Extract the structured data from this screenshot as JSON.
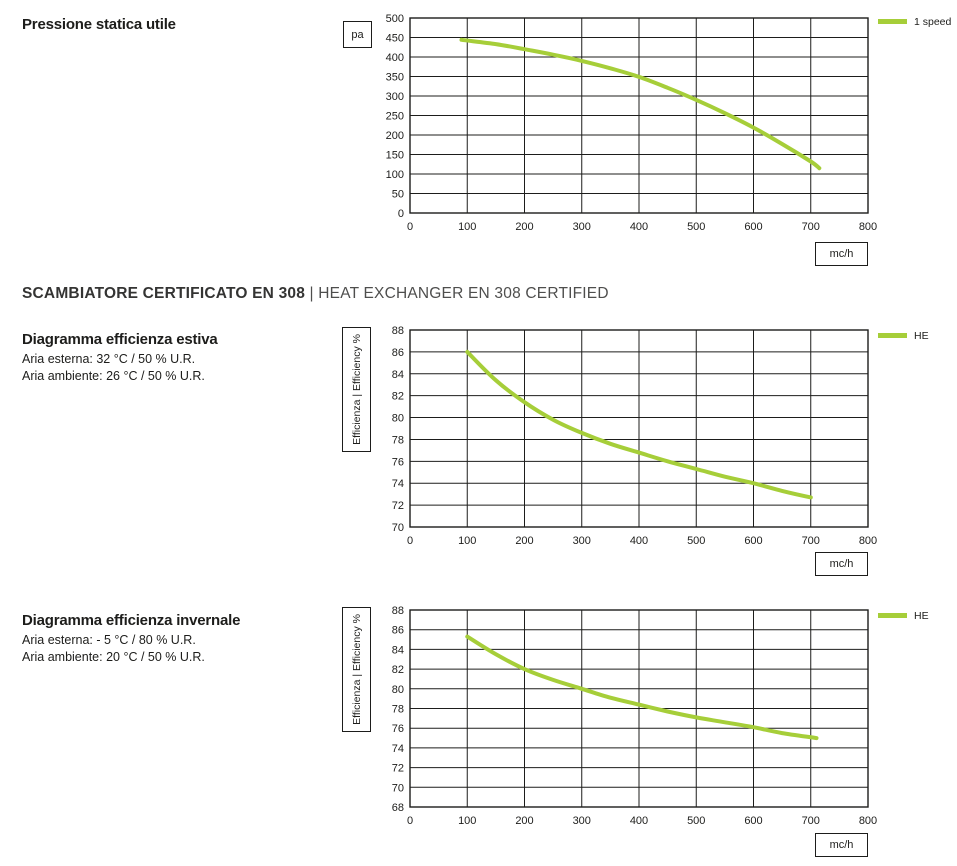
{
  "colors": {
    "line": "#a6ce39",
    "grid": "#1d1d1b",
    "text": "#1d1d1b"
  },
  "section_heading": {
    "primary": "SCAMBIATORE CERTIFICATO EN 308",
    "separator": " | ",
    "secondary": "HEAT EXCHANGER EN 308 CERTIFIED"
  },
  "x_unit_label": "mc/h",
  "chart_data": [
    {
      "id": "static-pressure",
      "type": "line",
      "title": "Pressione statica utile",
      "subtitles": [],
      "y_unit_box": "pa",
      "xlabel": "mc/h",
      "ylabel": "",
      "legend": "1 speed",
      "legend_position": "top-right-outside",
      "grid": true,
      "xlim": [
        0,
        800
      ],
      "xstep": 100,
      "ylim": [
        0,
        500
      ],
      "ystep": 50,
      "points": [
        [
          90,
          444
        ],
        [
          150,
          433
        ],
        [
          200,
          420
        ],
        [
          250,
          406
        ],
        [
          300,
          390
        ],
        [
          350,
          371
        ],
        [
          400,
          349
        ],
        [
          450,
          321
        ],
        [
          500,
          290
        ],
        [
          550,
          256
        ],
        [
          600,
          219
        ],
        [
          650,
          177
        ],
        [
          700,
          132
        ],
        [
          715,
          115
        ]
      ]
    },
    {
      "id": "summer-efficiency",
      "type": "line",
      "title": "Diagramma efficienza estiva",
      "subtitles": [
        "Aria esterna: 32 °C / 50 % U.R.",
        "Aria ambiente: 26 °C / 50 % U.R."
      ],
      "y_unit_box": "",
      "xlabel": "mc/h",
      "ylabel": "Efficienza | Efficiency %",
      "legend": "HE",
      "legend_position": "top-right-outside",
      "grid": true,
      "xlim": [
        0,
        800
      ],
      "xstep": 100,
      "ylim": [
        70,
        88
      ],
      "ystep": 2,
      "points": [
        [
          100,
          86
        ],
        [
          150,
          83.4
        ],
        [
          200,
          81.4
        ],
        [
          250,
          79.8
        ],
        [
          300,
          78.6
        ],
        [
          350,
          77.6
        ],
        [
          400,
          76.8
        ],
        [
          450,
          76.0
        ],
        [
          500,
          75.3
        ],
        [
          550,
          74.6
        ],
        [
          600,
          74.0
        ],
        [
          650,
          73.3
        ],
        [
          700,
          72.7
        ]
      ]
    },
    {
      "id": "winter-efficiency",
      "type": "line",
      "title": "Diagramma efficienza invernale",
      "subtitles": [
        "Aria esterna: - 5 °C / 80 % U.R.",
        "Aria ambiente: 20 °C / 50 % U.R."
      ],
      "y_unit_box": "",
      "xlabel": "mc/h",
      "ylabel": "Efficienza | Efficiency %",
      "legend": "HE",
      "legend_position": "top-right-outside",
      "grid": true,
      "xlim": [
        0,
        800
      ],
      "xstep": 100,
      "ylim": [
        68,
        88
      ],
      "ystep": 2,
      "points": [
        [
          100,
          85.3
        ],
        [
          150,
          83.5
        ],
        [
          200,
          82.0
        ],
        [
          250,
          80.9
        ],
        [
          300,
          80.0
        ],
        [
          350,
          79.1
        ],
        [
          400,
          78.4
        ],
        [
          450,
          77.7
        ],
        [
          500,
          77.1
        ],
        [
          550,
          76.6
        ],
        [
          600,
          76.1
        ],
        [
          650,
          75.5
        ],
        [
          710,
          75.0
        ]
      ]
    }
  ]
}
